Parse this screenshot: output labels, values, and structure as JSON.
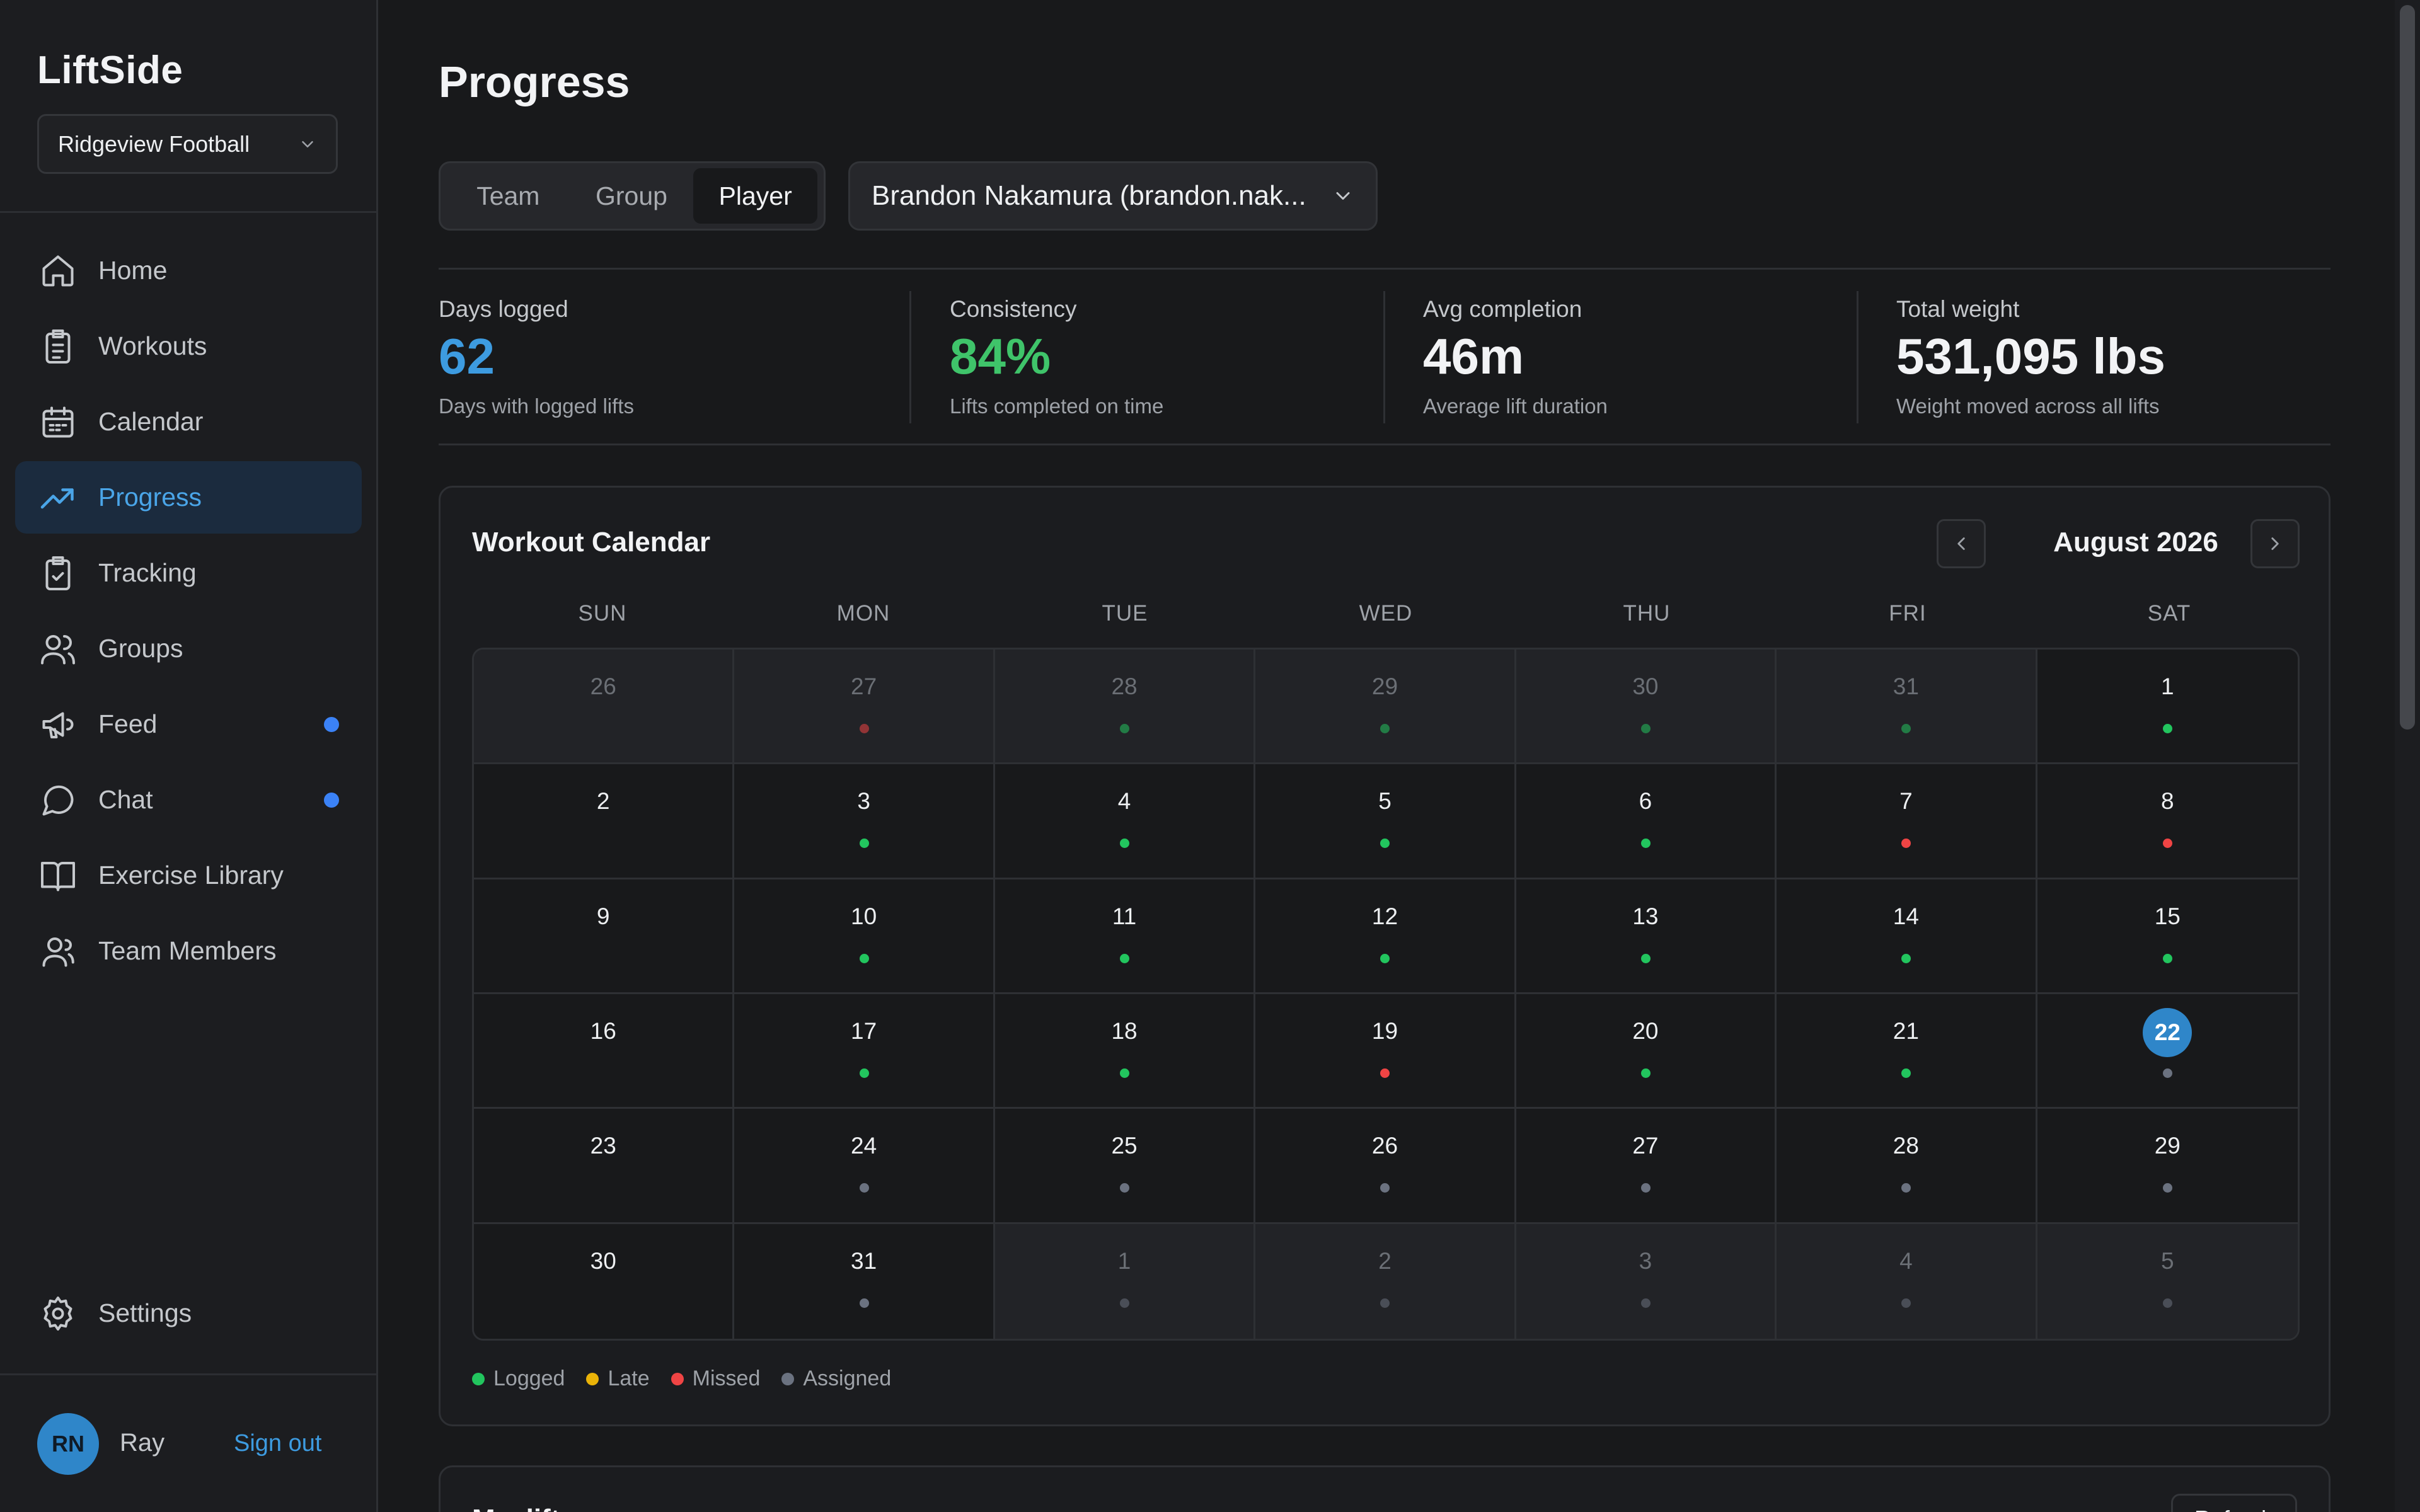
{
  "sidebar": {
    "brand": "LiftSide",
    "team_select": "Ridgeview Football",
    "items": [
      {
        "label": "Home",
        "icon": "home-icon"
      },
      {
        "label": "Workouts",
        "icon": "clipboard-list-icon"
      },
      {
        "label": "Calendar",
        "icon": "calendar-icon"
      },
      {
        "label": "Progress",
        "icon": "trending-up-icon",
        "active": true
      },
      {
        "label": "Tracking",
        "icon": "clipboard-check-icon"
      },
      {
        "label": "Groups",
        "icon": "users-icon"
      },
      {
        "label": "Feed",
        "icon": "megaphone-icon",
        "badge": true
      },
      {
        "label": "Chat",
        "icon": "message-circle-icon",
        "badge": true
      },
      {
        "label": "Exercise Library",
        "icon": "book-open-icon"
      },
      {
        "label": "Team Members",
        "icon": "user-group-icon"
      }
    ],
    "settings_label": "Settings",
    "user": {
      "initials": "RN",
      "name": "Ray",
      "sign_out": "Sign out"
    }
  },
  "main": {
    "title": "Progress",
    "tabs": [
      {
        "label": "Team"
      },
      {
        "label": "Group"
      },
      {
        "label": "Player",
        "active": true
      }
    ],
    "player_select": "Brandon Nakamura (brandon.nak...",
    "stats": [
      {
        "label": "Days logged",
        "value": "62",
        "sub": "Days with logged lifts",
        "color": "#3d9be0"
      },
      {
        "label": "Consistency",
        "value": "84%",
        "sub": "Lifts completed on time",
        "color": "#3fc46a"
      },
      {
        "label": "Avg completion",
        "value": "46m",
        "sub": "Average lift duration",
        "color": "#f2f3f5"
      },
      {
        "label": "Total weight",
        "value": "531,095 lbs",
        "sub": "Weight moved across all lifts",
        "color": "#f2f3f5"
      }
    ],
    "calendar": {
      "title": "Workout Calendar",
      "month": "August 2026",
      "days_of_week": [
        "SUN",
        "MON",
        "TUE",
        "WED",
        "THU",
        "FRI",
        "SAT"
      ],
      "cells": [
        {
          "d": "26",
          "out": true,
          "s": ""
        },
        {
          "d": "27",
          "out": true,
          "s": "missed"
        },
        {
          "d": "28",
          "out": true,
          "s": "logged"
        },
        {
          "d": "29",
          "out": true,
          "s": "logged"
        },
        {
          "d": "30",
          "out": true,
          "s": "logged"
        },
        {
          "d": "31",
          "out": true,
          "s": "logged"
        },
        {
          "d": "1",
          "s": "logged"
        },
        {
          "d": "2",
          "s": ""
        },
        {
          "d": "3",
          "s": "logged"
        },
        {
          "d": "4",
          "s": "logged"
        },
        {
          "d": "5",
          "s": "logged"
        },
        {
          "d": "6",
          "s": "logged"
        },
        {
          "d": "7",
          "s": "missed"
        },
        {
          "d": "8",
          "s": "missed"
        },
        {
          "d": "9",
          "s": ""
        },
        {
          "d": "10",
          "s": "logged"
        },
        {
          "d": "11",
          "s": "logged"
        },
        {
          "d": "12",
          "s": "logged"
        },
        {
          "d": "13",
          "s": "logged"
        },
        {
          "d": "14",
          "s": "logged"
        },
        {
          "d": "15",
          "s": "logged"
        },
        {
          "d": "16",
          "s": ""
        },
        {
          "d": "17",
          "s": "logged"
        },
        {
          "d": "18",
          "s": "logged"
        },
        {
          "d": "19",
          "s": "missed"
        },
        {
          "d": "20",
          "s": "logged"
        },
        {
          "d": "21",
          "s": "logged"
        },
        {
          "d": "22",
          "s": "assigned",
          "today": true
        },
        {
          "d": "23",
          "s": ""
        },
        {
          "d": "24",
          "s": "assigned"
        },
        {
          "d": "25",
          "s": "assigned"
        },
        {
          "d": "26",
          "s": "assigned"
        },
        {
          "d": "27",
          "s": "assigned"
        },
        {
          "d": "28",
          "s": "assigned"
        },
        {
          "d": "29",
          "s": "assigned"
        },
        {
          "d": "30",
          "s": ""
        },
        {
          "d": "31",
          "s": "assigned"
        },
        {
          "d": "1",
          "out": true,
          "s": "assigned"
        },
        {
          "d": "2",
          "out": true,
          "s": "assigned"
        },
        {
          "d": "3",
          "out": true,
          "s": "assigned"
        },
        {
          "d": "4",
          "out": true,
          "s": "assigned"
        },
        {
          "d": "5",
          "out": true,
          "s": "assigned"
        }
      ],
      "legend": [
        {
          "key": "logged",
          "label": "Logged",
          "color": "#22c55e"
        },
        {
          "key": "late",
          "label": "Late",
          "color": "#eab308"
        },
        {
          "key": "missed",
          "label": "Missed",
          "color": "#ef4444"
        },
        {
          "key": "assigned",
          "label": "Assigned",
          "color": "#6b7280"
        }
      ]
    },
    "next_card": {
      "title": "Maxlifts",
      "button": "Refresh"
    }
  }
}
